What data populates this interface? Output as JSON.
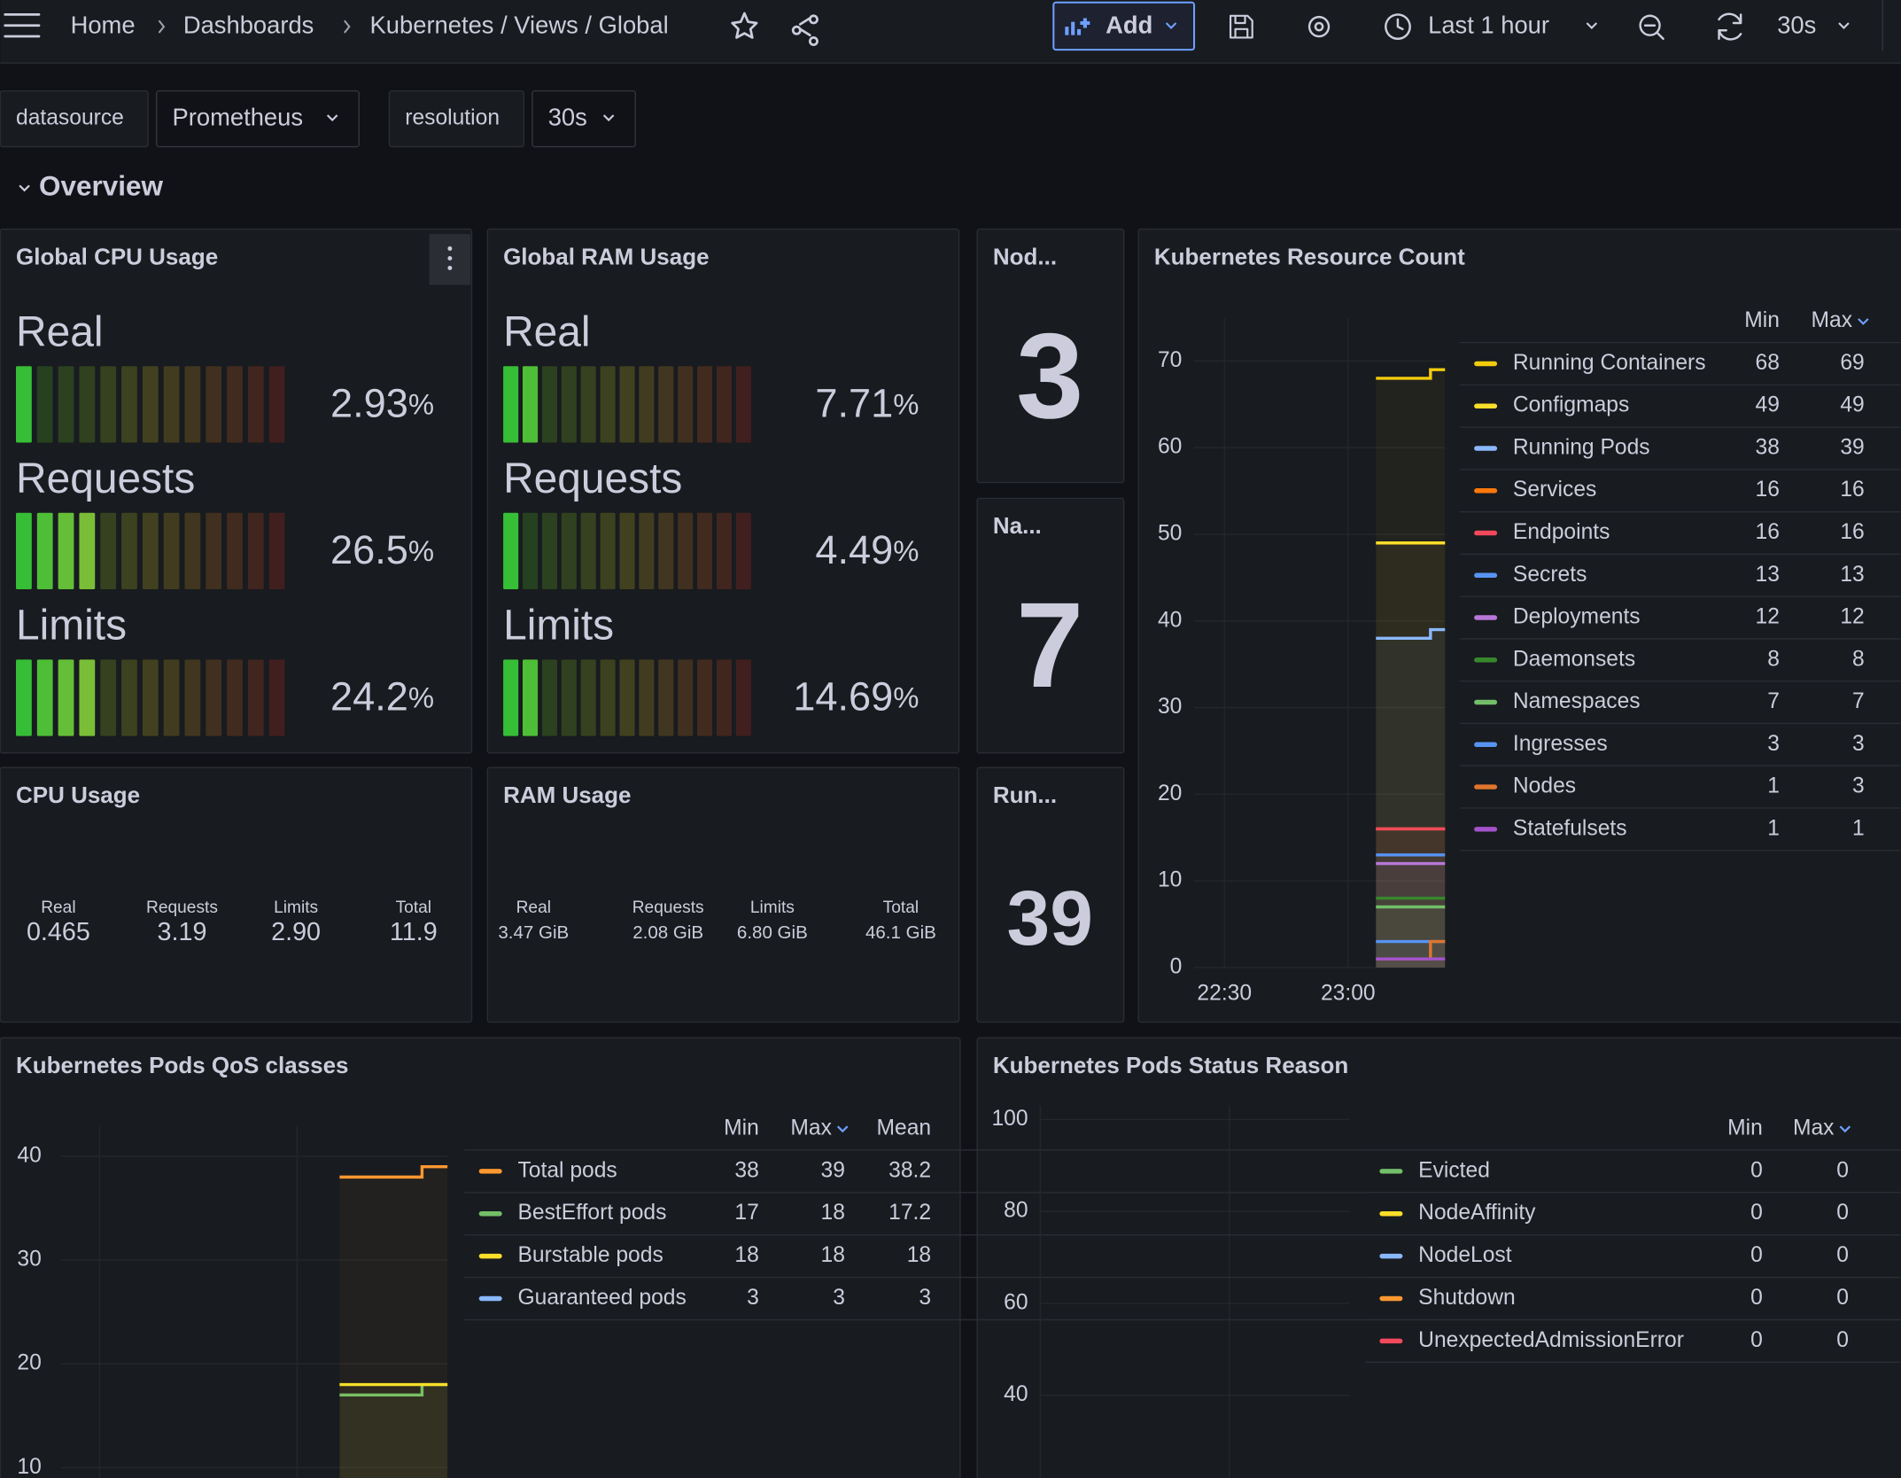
{
  "topbar": {
    "breadcrumb": [
      "Home",
      "Dashboards",
      "Kubernetes / Views / Global"
    ],
    "add": "Add",
    "time_range": "Last 1 hour",
    "refresh": "30s"
  },
  "variables": [
    {
      "name": "datasource",
      "value": "Prometheus"
    },
    {
      "name": "resolution",
      "value": "30s"
    }
  ],
  "row_title": "Overview",
  "panels": {
    "cpu_gauge": {
      "title": "Global CPU Usage",
      "unit": "%",
      "bars": [
        {
          "label": "Real",
          "value": 2.93
        },
        {
          "label": "Requests",
          "value": 26.5
        },
        {
          "label": "Limits",
          "value": 24.2
        }
      ]
    },
    "ram_gauge": {
      "title": "Global RAM Usage",
      "unit": "%",
      "bars": [
        {
          "label": "Real",
          "value": 7.71
        },
        {
          "label": "Requests",
          "value": 4.49
        },
        {
          "label": "Limits",
          "value": 14.69
        }
      ]
    },
    "nodes": {
      "title": "Nod...",
      "value": 3
    },
    "namespaces": {
      "title": "Na...",
      "value": 7
    },
    "running": {
      "title": "Run...",
      "value": 39
    },
    "cpu_usage": {
      "title": "CPU Usage",
      "stats": [
        {
          "label": "Real",
          "value": "0.465"
        },
        {
          "label": "Requests",
          "value": "3.19"
        },
        {
          "label": "Limits",
          "value": "2.90"
        },
        {
          "label": "Total",
          "value": "11.9"
        }
      ]
    },
    "ram_usage": {
      "title": "RAM Usage",
      "stats": [
        {
          "label": "Real",
          "value": "3.47 GiB"
        },
        {
          "label": "Requests",
          "value": "2.08 GiB"
        },
        {
          "label": "Limits",
          "value": "6.80 GiB"
        },
        {
          "label": "Total",
          "value": "46.1 GiB"
        }
      ]
    },
    "resource_count": {
      "title": "Kubernetes Resource Count",
      "columns": [
        "Min",
        "Max"
      ],
      "ylim": [
        0,
        75
      ],
      "yticks": [
        0,
        10,
        20,
        30,
        40,
        50,
        60,
        70
      ],
      "xticks": [
        "22:30",
        "23:00"
      ],
      "series": [
        {
          "name": "Running Containers",
          "color": "#f2cc0c",
          "min": 68,
          "max": 69
        },
        {
          "name": "Configmaps",
          "color": "#fade2a",
          "min": 49,
          "max": 49
        },
        {
          "name": "Running Pods",
          "color": "#8ab8ff",
          "min": 38,
          "max": 39
        },
        {
          "name": "Services",
          "color": "#ff780a",
          "min": 16,
          "max": 16
        },
        {
          "name": "Endpoints",
          "color": "#f2495c",
          "min": 16,
          "max": 16
        },
        {
          "name": "Secrets",
          "color": "#5794f2",
          "min": 13,
          "max": 13
        },
        {
          "name": "Deployments",
          "color": "#b877d9",
          "min": 12,
          "max": 12
        },
        {
          "name": "Daemonsets",
          "color": "#37872d",
          "min": 8,
          "max": 8
        },
        {
          "name": "Namespaces",
          "color": "#73bf69",
          "min": 7,
          "max": 7
        },
        {
          "name": "Ingresses",
          "color": "#5794f2",
          "min": 3,
          "max": 3
        },
        {
          "name": "Nodes",
          "color": "#e0752d",
          "min": 1,
          "max": 3
        },
        {
          "name": "Statefulsets",
          "color": "#a352cc",
          "min": 1,
          "max": 1
        }
      ]
    },
    "qos": {
      "title": "Kubernetes Pods QoS classes",
      "columns": [
        "Min",
        "Max",
        "Mean"
      ],
      "ylim": [
        9,
        43
      ],
      "yticks": [
        10,
        20,
        30,
        40
      ],
      "series": [
        {
          "name": "Total pods",
          "color": "#ff9830",
          "min": 38,
          "max": 39,
          "mean": 38.2
        },
        {
          "name": "BestEffort pods",
          "color": "#73bf69",
          "min": 17,
          "max": 18,
          "mean": 17.2
        },
        {
          "name": "Burstable pods",
          "color": "#fade2a",
          "min": 18,
          "max": 18,
          "mean": 18
        },
        {
          "name": "Guaranteed pods",
          "color": "#8ab8ff",
          "min": 3,
          "max": 3,
          "mean": 3
        }
      ]
    },
    "status": {
      "title": "Kubernetes Pods Status Reason",
      "columns": [
        "Min",
        "Max"
      ],
      "ylim": [
        22,
        103
      ],
      "yticks": [
        40,
        60,
        80,
        100
      ],
      "series": [
        {
          "name": "Evicted",
          "color": "#73bf69",
          "min": 0,
          "max": 0
        },
        {
          "name": "NodeAffinity",
          "color": "#fade2a",
          "min": 0,
          "max": 0
        },
        {
          "name": "NodeLost",
          "color": "#8ab8ff",
          "min": 0,
          "max": 0
        },
        {
          "name": "Shutdown",
          "color": "#ff9830",
          "min": 0,
          "max": 0
        },
        {
          "name": "UnexpectedAdmissionError",
          "color": "#f2495c",
          "min": 0,
          "max": 0
        }
      ]
    }
  }
}
